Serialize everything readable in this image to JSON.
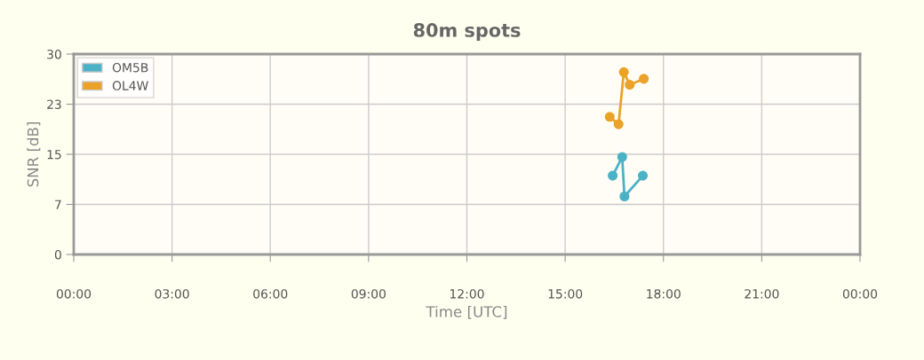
{
  "chart_data": {
    "type": "line",
    "title": "80m spots",
    "xlabel": "Time [UTC]",
    "ylabel": "SNR [dB]",
    "xlim": [
      0,
      24
    ],
    "xticks": [
      {
        "value": 0,
        "label": "00:00"
      },
      {
        "value": 3,
        "label": "03:00"
      },
      {
        "value": 6,
        "label": "06:00"
      },
      {
        "value": 9,
        "label": "09:00"
      },
      {
        "value": 12,
        "label": "12:00"
      },
      {
        "value": 15,
        "label": "15:00"
      },
      {
        "value": 18,
        "label": "18:00"
      },
      {
        "value": 21,
        "label": "21:00"
      },
      {
        "value": 24,
        "label": "00:00"
      }
    ],
    "ylim": [
      0,
      30
    ],
    "yticks": [
      0,
      {
        "value": 7.5,
        "label": "7"
      },
      15,
      {
        "value": 22.5,
        "label": "23"
      },
      30
    ],
    "grid": true,
    "legend": "top left",
    "marker": "circle",
    "line_style": "solid",
    "series": [
      {
        "name": "OM5B",
        "color": "#4bb2c5",
        "x": [
          16.45,
          16.74,
          16.81,
          17.37
        ],
        "values": [
          11.8,
          14.6,
          8.7,
          11.8
        ]
      },
      {
        "name": "OL4W",
        "color": "#eaa228",
        "x": [
          16.36,
          16.63,
          16.79,
          16.97,
          17.4
        ],
        "values": [
          20.6,
          19.5,
          27.3,
          25.4,
          26.3
        ]
      }
    ]
  }
}
